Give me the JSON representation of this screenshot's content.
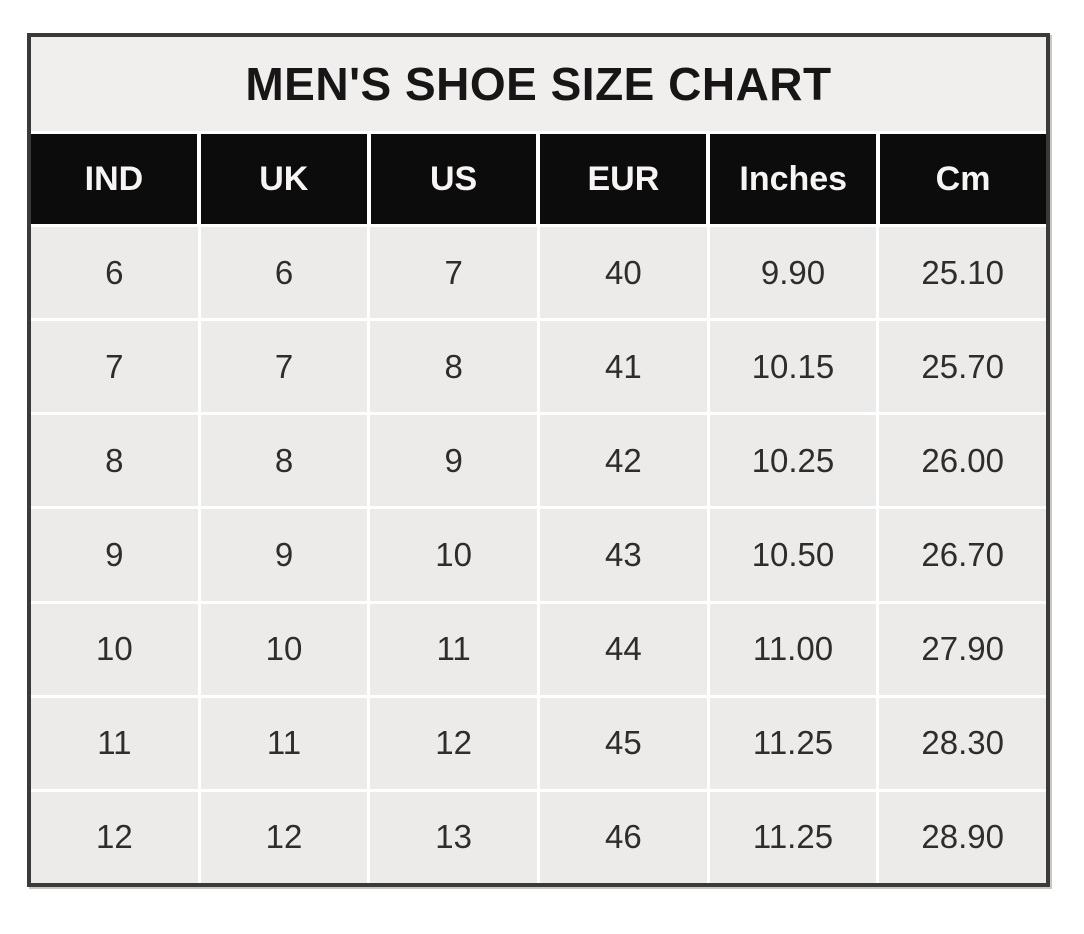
{
  "chart_data": {
    "type": "table",
    "title": "MEN'S SHOE SIZE CHART",
    "columns": [
      "IND",
      "UK",
      "US",
      "EUR",
      "Inches",
      "Cm"
    ],
    "rows": [
      [
        "6",
        "6",
        "7",
        "40",
        "9.90",
        "25.10"
      ],
      [
        "7",
        "7",
        "8",
        "41",
        "10.15",
        "25.70"
      ],
      [
        "8",
        "8",
        "9",
        "42",
        "10.25",
        "26.00"
      ],
      [
        "9",
        "9",
        "10",
        "43",
        "10.50",
        "26.70"
      ],
      [
        "10",
        "10",
        "11",
        "44",
        "11.00",
        "27.90"
      ],
      [
        "11",
        "11",
        "12",
        "45",
        "11.25",
        "28.30"
      ],
      [
        "12",
        "12",
        "13",
        "46",
        "11.25",
        "28.90"
      ]
    ],
    "layout": {
      "legend": "none",
      "grid": "white-separators",
      "header_style": "black-on-white-text",
      "row_count": 7,
      "column_count": 6
    }
  },
  "colors": {
    "page_background": "#ffffff",
    "table_border": "#3a3a38",
    "title_background": "#f1efee",
    "title_text": "#161616",
    "header_background": "#0c0c0c",
    "header_text": "#f7f5f3",
    "cell_background": "#edebe9",
    "cell_text": "#2e2d2c",
    "separator": "#ffffff"
  }
}
